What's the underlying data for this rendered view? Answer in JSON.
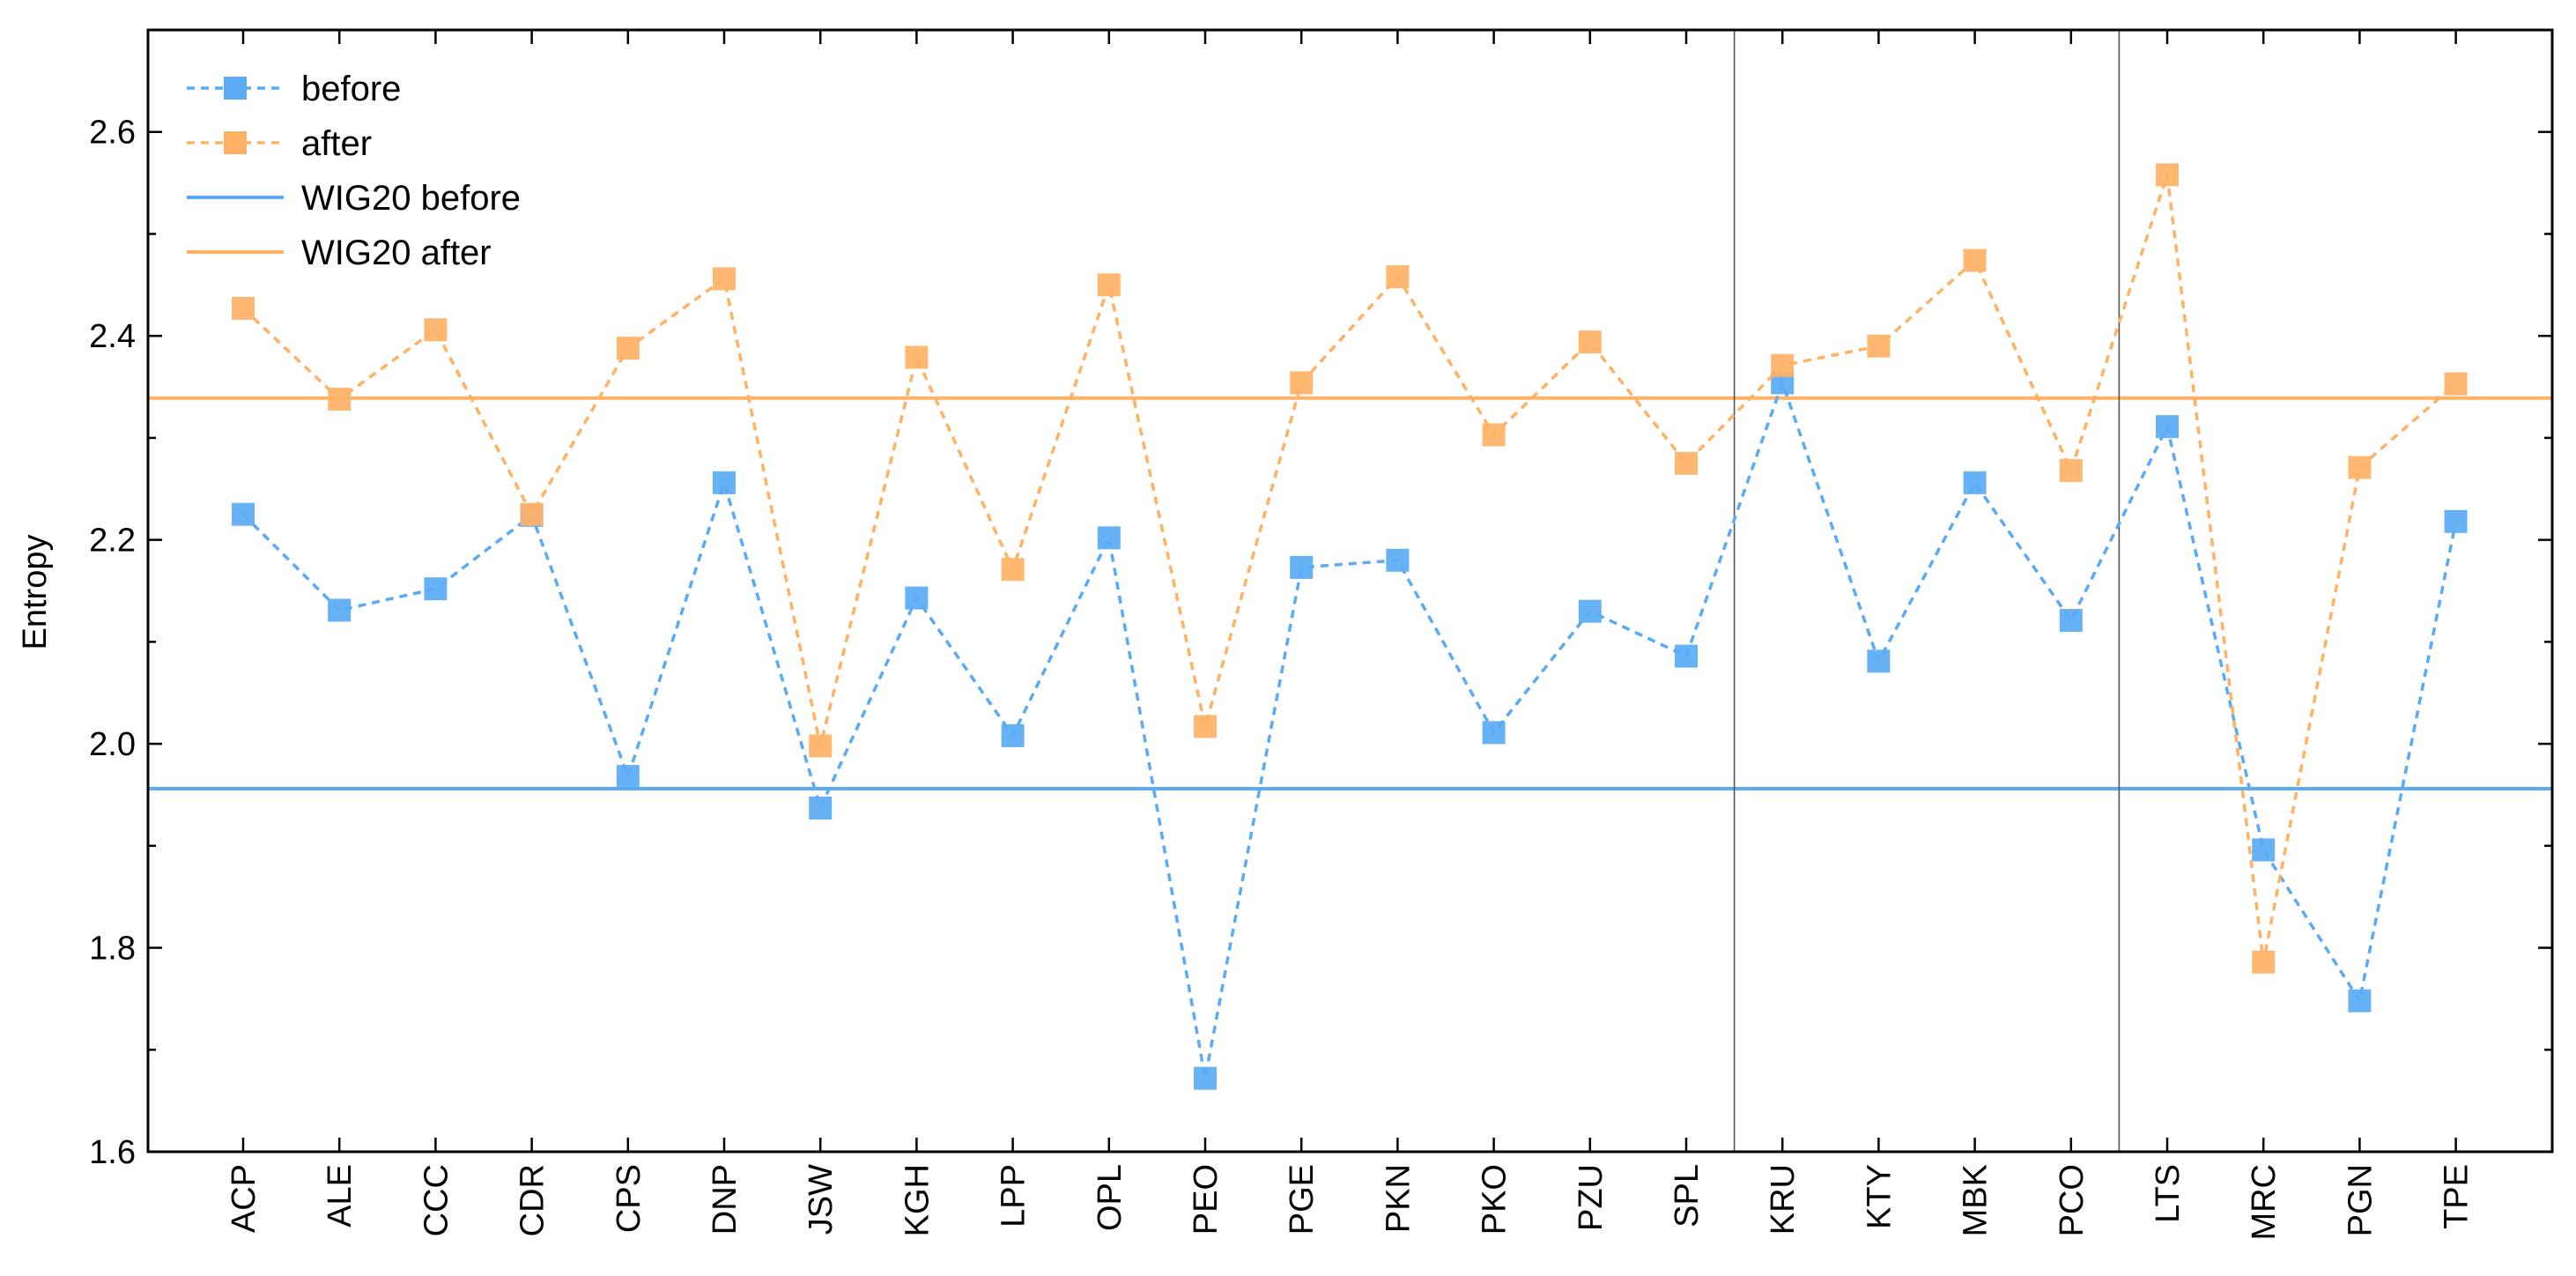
{
  "chart_data": {
    "type": "line",
    "ylabel": "Entropy",
    "xlabel": "",
    "ylim": [
      1.6,
      2.7
    ],
    "yticks": [
      1.6,
      1.8,
      2.0,
      2.2,
      2.4,
      2.6
    ],
    "ytick_labels": [
      "1.6",
      "1.8",
      "2.0",
      "2.2",
      "2.4",
      "2.6"
    ],
    "categories": [
      "ACP",
      "ALE",
      "CCC",
      "CDR",
      "CPS",
      "DNP",
      "JSW",
      "KGH",
      "LPP",
      "OPL",
      "PEO",
      "PGE",
      "PKN",
      "PKO",
      "PZU",
      "SPL",
      "KRU",
      "KTY",
      "MBK",
      "PCO",
      "LTS",
      "MRC",
      "PGN",
      "TPE"
    ],
    "groups": [
      [
        "ACP",
        "ALE",
        "CCC",
        "CDR",
        "CPS",
        "DNP",
        "JSW",
        "KGH",
        "LPP",
        "OPL",
        "PEO",
        "PGE",
        "PKN",
        "PKO",
        "PZU",
        "SPL"
      ],
      [
        "KRU",
        "KTY",
        "MBK",
        "PCO"
      ],
      [
        "LTS",
        "MRC",
        "PGN",
        "TPE"
      ]
    ],
    "series": [
      {
        "name": "before",
        "color": "#5aaaf4",
        "values": [
          2.225,
          2.131,
          2.152,
          2.224,
          1.968,
          2.256,
          1.937,
          2.143,
          2.008,
          2.202,
          1.672,
          2.173,
          2.18,
          2.011,
          2.13,
          2.086,
          2.354,
          2.081,
          2.256,
          2.121,
          2.311,
          1.896,
          1.748,
          2.218
        ]
      },
      {
        "name": "after",
        "color": "#ffb266",
        "values": [
          2.427,
          2.338,
          2.406,
          2.225,
          2.388,
          2.456,
          1.998,
          2.379,
          2.171,
          2.45,
          2.017,
          2.354,
          2.458,
          2.303,
          2.394,
          2.275,
          2.371,
          2.39,
          2.474,
          2.268,
          2.558,
          1.786,
          2.271,
          2.353
        ]
      }
    ],
    "reference_lines": [
      {
        "name": "WIG20 before",
        "value": 1.956,
        "color": "#5aaaf4"
      },
      {
        "name": "WIG20 after",
        "value": 2.339,
        "color": "#ffb266"
      }
    ],
    "legend": {
      "placement": "top-left",
      "entries": [
        "before",
        "after",
        "WIG20 before",
        "WIG20 after"
      ]
    }
  }
}
